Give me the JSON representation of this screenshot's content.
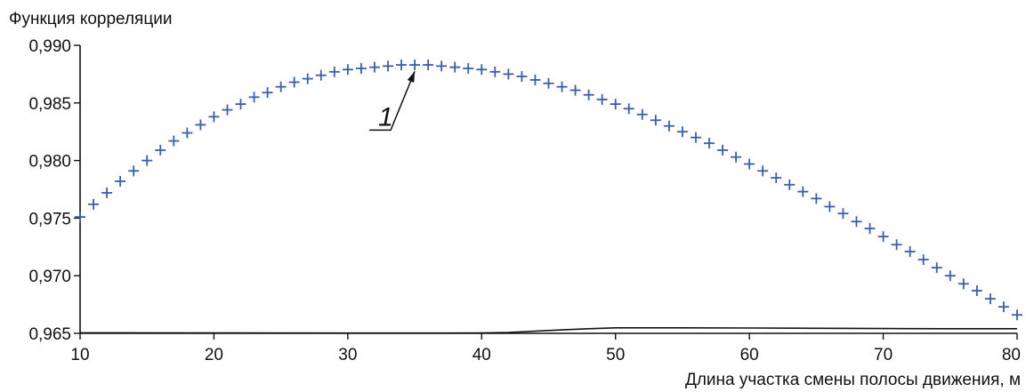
{
  "chart_data": {
    "type": "scatter",
    "title": "",
    "ylabel": "Функция корреляции",
    "xlabel": "Длина участка смены полосы движения, м",
    "xlim": [
      10,
      80
    ],
    "ylim": [
      0.965,
      0.99
    ],
    "x_ticks": [
      10,
      20,
      30,
      40,
      50,
      60,
      70,
      80
    ],
    "x_tick_labels": [
      "10",
      "20",
      "30",
      "40",
      "50",
      "60",
      "70",
      "80"
    ],
    "y_ticks": [
      0.965,
      0.97,
      0.975,
      0.98,
      0.985,
      0.99
    ],
    "y_tick_labels": [
      "0,965",
      "0,970",
      "0,975",
      "0,980",
      "0,985",
      "0,990"
    ],
    "grid": false,
    "marker": "+",
    "series": [
      {
        "color": "#3a5ea8",
        "x": [
          10,
          11,
          12,
          13,
          14,
          15,
          16,
          17,
          18,
          19,
          20,
          21,
          22,
          23,
          24,
          25,
          26,
          27,
          28,
          29,
          30,
          31,
          32,
          33,
          34,
          35,
          36,
          37,
          38,
          39,
          40,
          41,
          42,
          43,
          44,
          45,
          46,
          47,
          48,
          49,
          50,
          51,
          52,
          53,
          54,
          55,
          56,
          57,
          58,
          59,
          60,
          61,
          62,
          63,
          64,
          65,
          66,
          67,
          68,
          69,
          70,
          71,
          72,
          73,
          74,
          75,
          76,
          77,
          78,
          79,
          80
        ],
        "y": [
          0.9751,
          0.9762,
          0.9772,
          0.9782,
          0.9791,
          0.98,
          0.9809,
          0.9817,
          0.9824,
          0.9831,
          0.9838,
          0.9844,
          0.9849,
          0.9855,
          0.9859,
          0.9864,
          0.9868,
          0.9871,
          0.9874,
          0.9877,
          0.9879,
          0.988,
          0.9881,
          0.9882,
          0.9883,
          0.9883,
          0.9883,
          0.9882,
          0.9881,
          0.988,
          0.9879,
          0.9877,
          0.9875,
          0.9873,
          0.987,
          0.9867,
          0.9864,
          0.9861,
          0.9857,
          0.9853,
          0.9849,
          0.9845,
          0.984,
          0.9835,
          0.983,
          0.9825,
          0.982,
          0.9815,
          0.9809,
          0.9803,
          0.9797,
          0.9791,
          0.9785,
          0.9779,
          0.9773,
          0.9767,
          0.976,
          0.9754,
          0.9747,
          0.9741,
          0.9734,
          0.9727,
          0.9721,
          0.9714,
          0.9707,
          0.97,
          0.9693,
          0.9687,
          0.968,
          0.9673,
          0.9666
        ]
      }
    ],
    "baseline_curve": {
      "color": "#111111",
      "x": [
        10,
        20,
        30,
        40,
        42,
        45,
        48,
        50,
        55,
        60,
        65,
        70,
        75,
        80
      ],
      "y": [
        0.96505,
        0.96503,
        0.96502,
        0.96503,
        0.96508,
        0.96525,
        0.9654,
        0.96548,
        0.96548,
        0.96546,
        0.96544,
        0.96542,
        0.9654,
        0.9654
      ]
    },
    "annotation": {
      "label": "1",
      "target_x": 35,
      "target_y": 0.9882
    }
  }
}
